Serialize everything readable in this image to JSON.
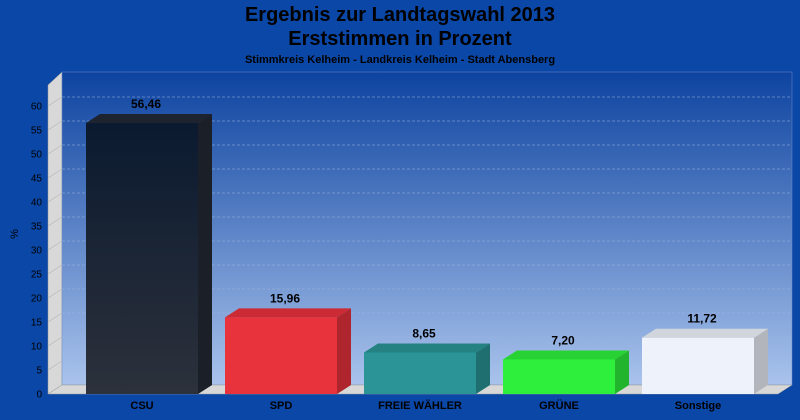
{
  "chart_data": {
    "type": "bar",
    "title": "Ergebnis zur Landtagswahl 2013",
    "subtitle": "Erststimmen in Prozent",
    "subsubtitle": "Stimmkreis Kelheim - Landkreis Kelheim - Stadt Abensberg",
    "ylabel": "%",
    "xlabel": "",
    "ylim": [
      0,
      60
    ],
    "yticks": [
      0,
      5,
      10,
      15,
      20,
      25,
      30,
      35,
      40,
      45,
      50,
      55,
      60
    ],
    "grid": true,
    "categories": [
      "CSU",
      "SPD",
      "FREIE WÄHLER",
      "GRÜNE",
      "Sonstige"
    ],
    "values": [
      56.46,
      15.96,
      8.65,
      7.2,
      11.72
    ],
    "value_labels": [
      "56,46",
      "15,96",
      "8,65",
      "7,20",
      "11,72"
    ],
    "colors": [
      "#232a36",
      "#e8323c",
      "#2a9496",
      "#2ef03c",
      "#eef3fb"
    ]
  }
}
